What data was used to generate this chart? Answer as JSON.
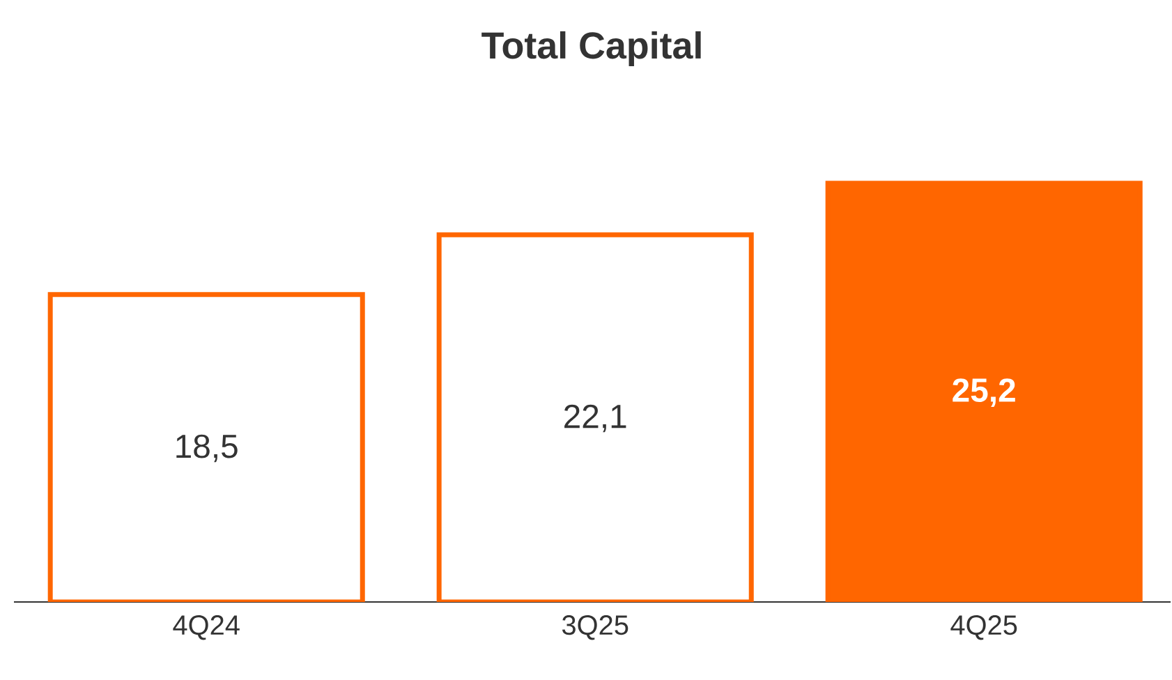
{
  "chart_data": {
    "type": "bar",
    "title": "Total Capital",
    "categories": [
      "4Q24",
      "3Q25",
      "4Q25"
    ],
    "values": [
      18.5,
      22.1,
      25.2
    ],
    "value_labels": [
      "18,5",
      "22,1",
      "25,2"
    ],
    "color": "#ff6600",
    "colors": [
      "#ffffff",
      "#ffffff",
      "#ff6600"
    ],
    "tick_labels": "x"
  }
}
